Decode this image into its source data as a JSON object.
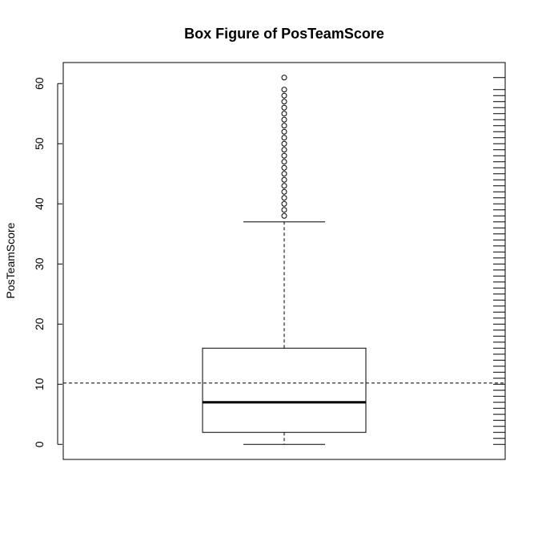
{
  "chart_data": {
    "type": "boxplot",
    "title": "Box Figure of PosTeamScore",
    "xlabel": "",
    "ylabel": "PosTeamScore",
    "ylim": [
      -2.5,
      63.5
    ],
    "yticks": [
      "0",
      "10",
      "20",
      "30",
      "40",
      "50",
      "60"
    ],
    "box": {
      "min": 0,
      "q1": 2,
      "median": 7,
      "q3": 16,
      "whisker_high": 37
    },
    "outliers": [
      38,
      39,
      40,
      41,
      42,
      43,
      44,
      45,
      46,
      47,
      48,
      49,
      50,
      51,
      52,
      53,
      54,
      55,
      56,
      57,
      58,
      59,
      61
    ],
    "reference_line": 10.2,
    "rug": [
      0,
      1,
      2,
      3,
      4,
      5,
      6,
      7,
      8,
      9,
      10,
      11,
      12,
      13,
      14,
      15,
      16,
      17,
      18,
      19,
      20,
      21,
      22,
      23,
      24,
      25,
      26,
      27,
      28,
      29,
      30,
      31,
      32,
      33,
      34,
      35,
      36,
      37,
      38,
      39,
      40,
      41,
      42,
      43,
      44,
      45,
      46,
      47,
      48,
      49,
      50,
      51,
      52,
      53,
      54,
      55,
      56,
      57,
      58,
      59,
      61
    ],
    "grid": false,
    "legend": "none"
  }
}
